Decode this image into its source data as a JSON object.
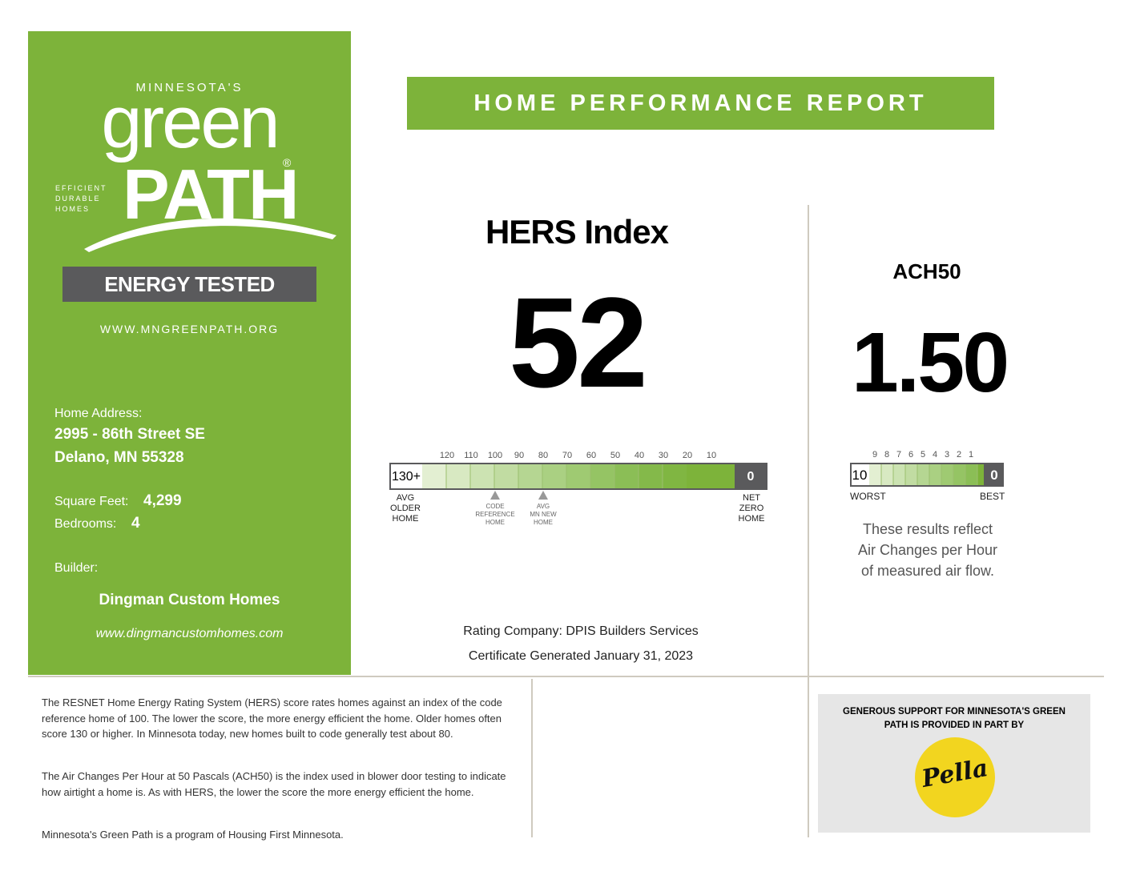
{
  "header": {
    "title": "HOME PERFORMANCE REPORT"
  },
  "logo": {
    "state": "MINNESOTA'S",
    "word1": "green",
    "word2": "PATH",
    "registered": "®",
    "tagline": [
      "EFFICIENT",
      "DURABLE",
      "HOMES"
    ]
  },
  "badge": {
    "label": "ENERGY TESTED"
  },
  "website": "WWW.MNGREENPATH.ORG",
  "home": {
    "address_label": "Home Address:",
    "address_line1": "2995 - 86th Street SE",
    "address_line2": "Delano, MN 55328",
    "sqft_label": "Square Feet:",
    "sqft_value": "4,299",
    "bedrooms_label": "Bedrooms:",
    "bedrooms_value": "4",
    "builder_label": "Builder:",
    "builder_name": "Dingman Custom Homes",
    "builder_site": "www.dingmancustomhomes.com"
  },
  "hers": {
    "title": "HERS Index",
    "value": "52",
    "scale_ticks": [
      "120",
      "110",
      "100",
      "90",
      "80",
      "70",
      "60",
      "50",
      "40",
      "30",
      "20",
      "10"
    ],
    "scale_left": "130+",
    "scale_right": "0",
    "label_left": [
      "AVG",
      "OLDER",
      "HOME"
    ],
    "label_code": [
      "CODE",
      "REFERENCE",
      "HOME"
    ],
    "label_avg_new": [
      "AVG",
      "MN NEW",
      "HOME"
    ],
    "label_right": [
      "NET",
      "ZERO",
      "HOME"
    ]
  },
  "ach": {
    "title": "ACH50",
    "value": "1.50",
    "scale_ticks": [
      "9",
      "8",
      "7",
      "6",
      "5",
      "4",
      "3",
      "2",
      "1"
    ],
    "scale_left": "10",
    "scale_right": "0",
    "worst_label": "WORST",
    "best_label": "BEST",
    "desc_lines": [
      "These results reflect",
      "Air Changes per Hour",
      "of measured air flow."
    ]
  },
  "rating": {
    "company": "Rating Company: DPIS Builders Services",
    "generated": "Certificate Generated January 31, 2023"
  },
  "info": {
    "para1": "The RESNET Home Energy Rating System (HERS) score rates homes against an index of the code reference home of 100. The lower the score, the more energy efficient the home. Older homes often score 130 or higher. In Minnesota today, new homes built to code generally test about 80.",
    "para2": "The Air Changes Per Hour at 50 Pascals (ACH50) is the index used in blower door testing to indicate how airtight a home is. As with HERS, the lower the score the more energy efficient the home.",
    "para3": "Minnesota's Green Path is a program of Housing First Minnesota."
  },
  "sponsor": {
    "text": "GENEROUS SUPPORT FOR MINNESOTA'S GREEN PATH IS PROVIDED IN PART BY",
    "logo_text": "Pella"
  },
  "colors": {
    "brand_green": "#7db33a",
    "badge_gray": "#5a5a5c",
    "pella_yellow": "#f2d51f"
  }
}
